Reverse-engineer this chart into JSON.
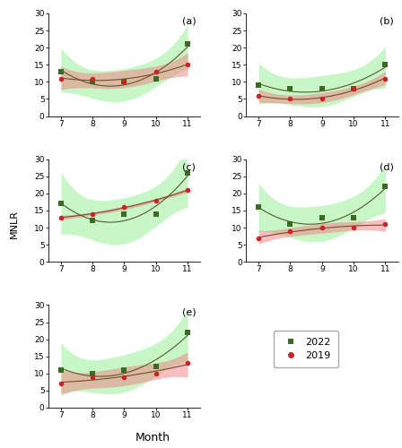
{
  "months": [
    7,
    8,
    9,
    10,
    11
  ],
  "panels": [
    {
      "label": "a",
      "data_2022": [
        13,
        10,
        10,
        11,
        21
      ],
      "data_2019": [
        11,
        11,
        10,
        13,
        15
      ]
    },
    {
      "label": "b",
      "data_2022": [
        9,
        8,
        8,
        8,
        15
      ],
      "data_2019": [
        6,
        5,
        5,
        8,
        11
      ]
    },
    {
      "label": "c",
      "data_2022": [
        17,
        12,
        14,
        14,
        26
      ],
      "data_2019": [
        13,
        14,
        16,
        18,
        21
      ]
    },
    {
      "label": "d",
      "data_2022": [
        16,
        11,
        13,
        13,
        22
      ],
      "data_2019": [
        7,
        9,
        10,
        10,
        11
      ]
    },
    {
      "label": "e",
      "data_2022": [
        11,
        10,
        11,
        12,
        22
      ],
      "data_2019": [
        7,
        9,
        9,
        10,
        13
      ]
    }
  ],
  "color_2022_fill": "#90ee90",
  "color_2019_fill": "#f08080",
  "color_2022_line": "#5a5a2a",
  "color_2019_line": "#7a4a2a",
  "color_2022_marker": "#3a6b20",
  "color_2019_marker": "#cc2222",
  "ylabel": "MNLR",
  "xlabel": "Month",
  "ylim": [
    0,
    30
  ],
  "yticks": [
    0,
    5,
    10,
    15,
    20,
    25,
    30
  ],
  "xticks": [
    7,
    8,
    9,
    10,
    11
  ],
  "fill_alpha_green": 0.5,
  "fill_alpha_red": 0.5
}
